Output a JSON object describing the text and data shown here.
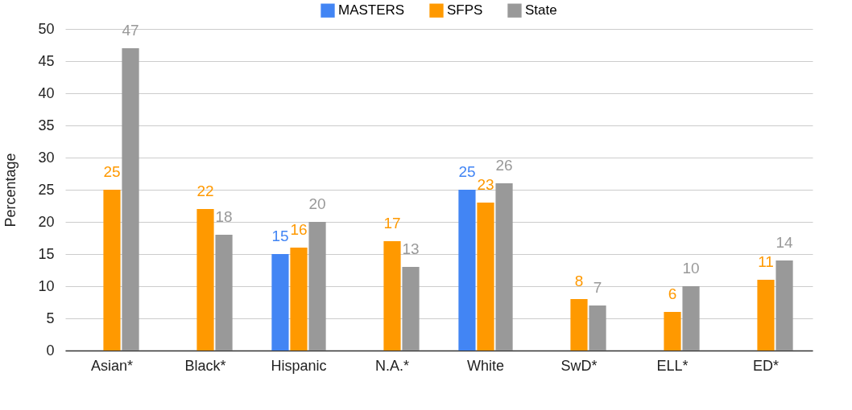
{
  "chart_data": {
    "type": "bar",
    "ylabel": "Percentage",
    "categories": [
      "Asian*",
      "Black*",
      "Hispanic",
      "N.A.*",
      "White",
      "SwD*",
      "ELL*",
      "ED*"
    ],
    "series": [
      {
        "name": "MASTERS",
        "color": "#4285f4",
        "values": [
          null,
          null,
          15,
          null,
          25,
          null,
          null,
          null
        ]
      },
      {
        "name": "SFPS",
        "color": "#ff9900",
        "values": [
          25,
          22,
          16,
          17,
          23,
          8,
          6,
          11
        ]
      },
      {
        "name": "State",
        "color": "#999999",
        "values": [
          47,
          18,
          20,
          13,
          26,
          7,
          10,
          14
        ]
      }
    ],
    "ylim": [
      0,
      50
    ],
    "yticks": [
      0,
      5,
      10,
      15,
      20,
      25,
      30,
      35,
      40,
      45,
      50
    ],
    "grid": "y",
    "legend": "top",
    "data_labels": true
  }
}
